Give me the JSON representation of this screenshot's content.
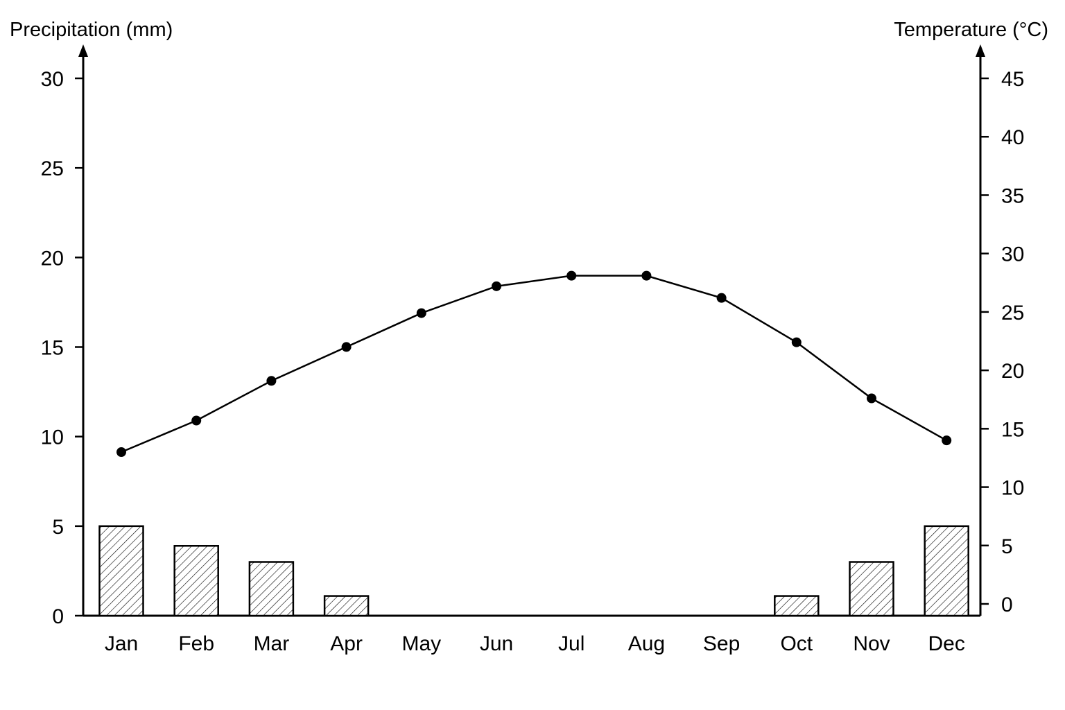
{
  "chart_data": {
    "type": "bar+line",
    "categories": [
      "Jan",
      "Feb",
      "Mar",
      "Apr",
      "May",
      "Jun",
      "Jul",
      "Aug",
      "Sep",
      "Oct",
      "Nov",
      "Dec"
    ],
    "series": [
      {
        "kind": "bar",
        "axis": "left",
        "values": [
          5,
          3.9,
          3,
          1.1,
          0,
          0,
          0,
          0,
          0,
          1.1,
          3,
          5
        ]
      },
      {
        "kind": "line",
        "axis": "right",
        "values": [
          13,
          15.7,
          19.1,
          22,
          24.9,
          27.2,
          28.1,
          28.1,
          26.2,
          22.4,
          17.6,
          14
        ]
      }
    ],
    "ylabel_left": "Precipitation (mm)",
    "ylabel_right": "Temperature (°C)",
    "ylim_left": [
      0,
      30
    ],
    "ylim_right": [
      0,
      45
    ],
    "yticks_left": [
      0,
      5,
      10,
      15,
      20,
      25,
      30
    ],
    "yticks_right": [
      0,
      5,
      10,
      15,
      20,
      25,
      30,
      35,
      40,
      45
    ],
    "grid": false,
    "bar_fill": "hatched",
    "line_color": "#000000",
    "bar_color": "#000000"
  }
}
